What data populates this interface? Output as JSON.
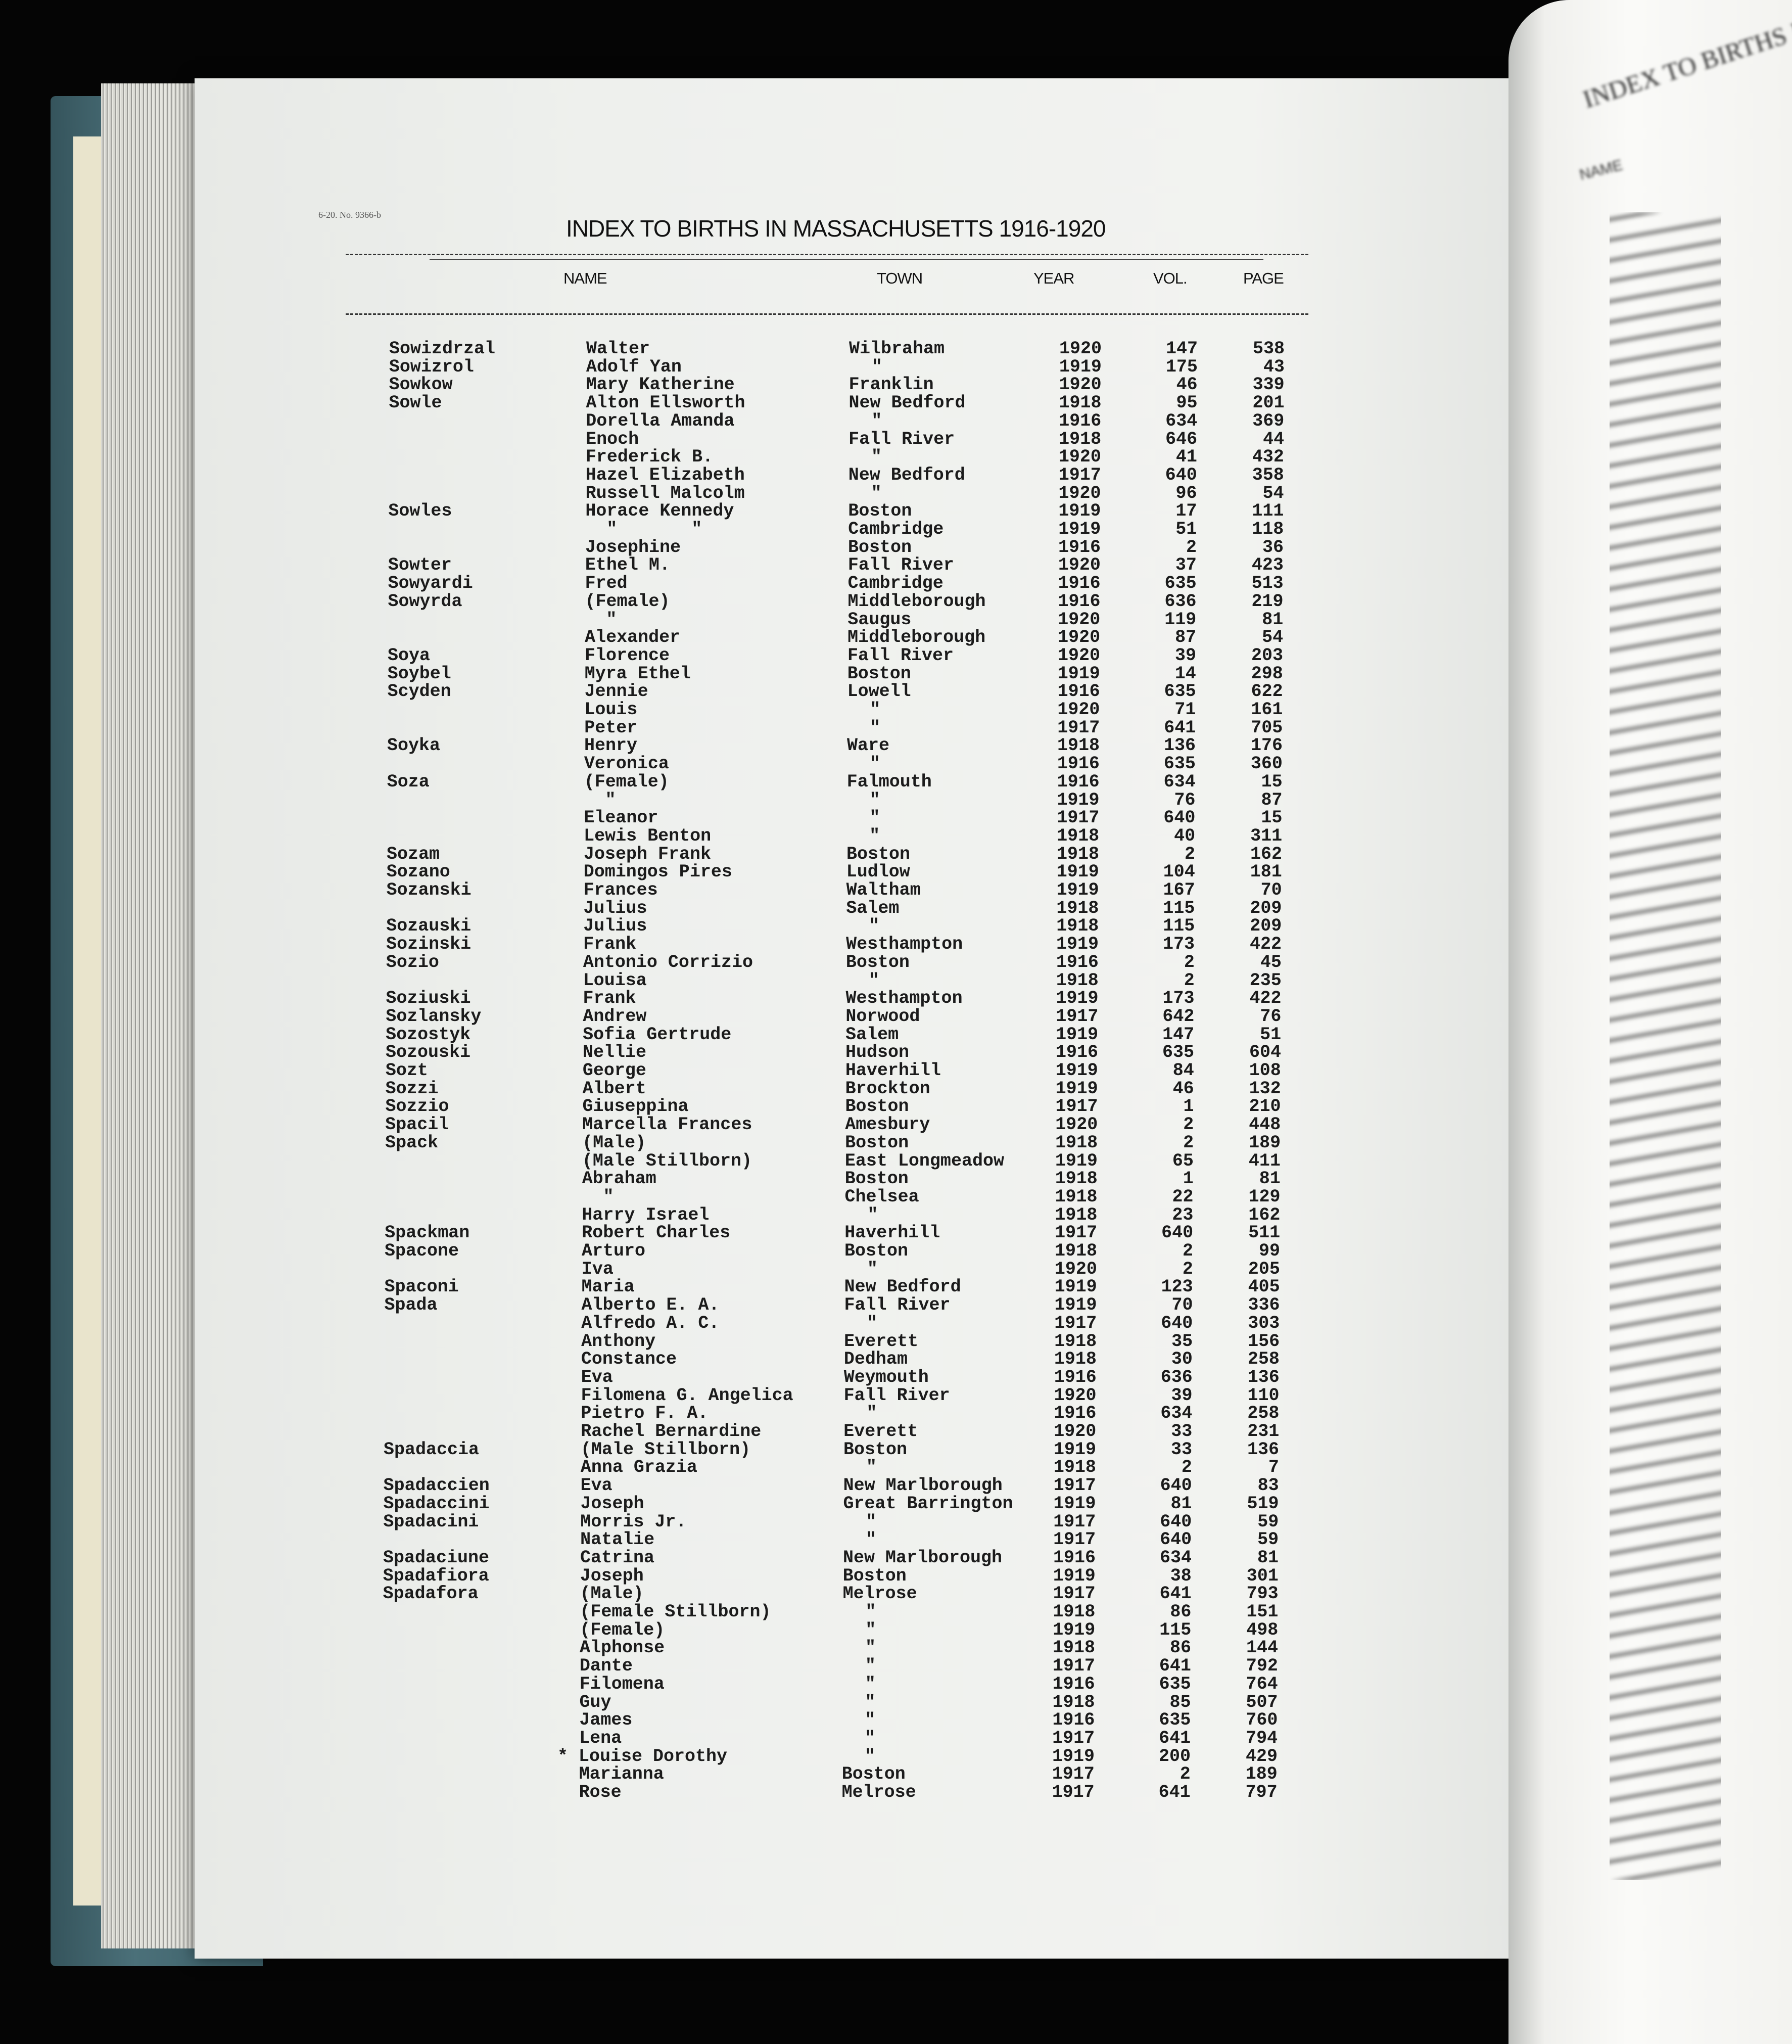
{
  "left_page": {
    "form_number": "6-20. No. 9366-b",
    "title": "INDEX TO BIRTHS IN MASSACHUSETTS 1916-1920",
    "columns": {
      "name": "NAME",
      "town": "TOWN",
      "year": "YEAR",
      "vol": "VOL.",
      "page": "PAGE"
    },
    "rows": [
      [
        "Sowizdrzal",
        "Walter",
        "Wilbraham",
        "1920",
        "147",
        "538"
      ],
      [
        "Sowizrol",
        "Adolf Yan",
        "\"",
        "1919",
        "175",
        "43"
      ],
      [
        "Sowkow",
        "Mary Katherine",
        "Franklin",
        "1920",
        "46",
        "339"
      ],
      [
        "Sowle",
        "Alton Ellsworth",
        "New Bedford",
        "1918",
        "95",
        "201"
      ],
      [
        "",
        "Dorella Amanda",
        "\"",
        "1916",
        "634",
        "369"
      ],
      [
        "",
        "Enoch",
        "Fall River",
        "1918",
        "646",
        "44"
      ],
      [
        "",
        "Frederick B.",
        "\"",
        "1920",
        "41",
        "432"
      ],
      [
        "",
        "Hazel Elizabeth",
        "New Bedford",
        "1917",
        "640",
        "358"
      ],
      [
        "",
        "Russell Malcolm",
        "\"",
        "1920",
        "96",
        "54"
      ],
      [
        "Sowles",
        "Horace Kennedy",
        "Boston",
        "1919",
        "17",
        "111"
      ],
      [
        "",
        "  \"       \"",
        "Cambridge",
        "1919",
        "51",
        "118"
      ],
      [
        "",
        "Josephine",
        "Boston",
        "1916",
        "2",
        "36"
      ],
      [
        "Sowter",
        "Ethel M.",
        "Fall River",
        "1920",
        "37",
        "423"
      ],
      [
        "Sowyardi",
        "Fred",
        "Cambridge",
        "1916",
        "635",
        "513"
      ],
      [
        "Sowyrda",
        "(Female)",
        "Middleborough",
        "1916",
        "636",
        "219"
      ],
      [
        "",
        "  \"",
        "Saugus",
        "1920",
        "119",
        "81"
      ],
      [
        "",
        "Alexander",
        "Middleborough",
        "1920",
        "87",
        "54"
      ],
      [
        "Soya",
        "Florence",
        "Fall River",
        "1920",
        "39",
        "203"
      ],
      [
        "Soybel",
        "Myra Ethel",
        "Boston",
        "1919",
        "14",
        "298"
      ],
      [
        "Scyden",
        "Jennie",
        "Lowell",
        "1916",
        "635",
        "622"
      ],
      [
        "",
        "Louis",
        "\"",
        "1920",
        "71",
        "161"
      ],
      [
        "",
        "Peter",
        "\"",
        "1917",
        "641",
        "705"
      ],
      [
        "Soyka",
        "Henry",
        "Ware",
        "1918",
        "136",
        "176"
      ],
      [
        "",
        "Veronica",
        "\"",
        "1916",
        "635",
        "360"
      ],
      [
        "Soza",
        "(Female)",
        "Falmouth",
        "1916",
        "634",
        "15"
      ],
      [
        "",
        "  \"",
        "\"",
        "1919",
        "76",
        "87"
      ],
      [
        "",
        "Eleanor",
        "\"",
        "1917",
        "640",
        "15"
      ],
      [
        "",
        "Lewis Benton",
        "\"",
        "1918",
        "40",
        "311"
      ],
      [
        "Sozam",
        "Joseph Frank",
        "Boston",
        "1918",
        "2",
        "162"
      ],
      [
        "Sozano",
        "Domingos Pires",
        "Ludlow",
        "1919",
        "104",
        "181"
      ],
      [
        "Sozanski",
        "Frances",
        "Waltham",
        "1919",
        "167",
        "70"
      ],
      [
        "",
        "Julius",
        "Salem",
        "1918",
        "115",
        "209"
      ],
      [
        "Sozauski",
        "Julius",
        "\"",
        "1918",
        "115",
        "209"
      ],
      [
        "Sozinski",
        "Frank",
        "Westhampton",
        "1919",
        "173",
        "422"
      ],
      [
        "Sozio",
        "Antonio Corrizio",
        "Boston",
        "1916",
        "2",
        "45"
      ],
      [
        "",
        "Louisa",
        "\"",
        "1918",
        "2",
        "235"
      ],
      [
        "Soziuski",
        "Frank",
        "Westhampton",
        "1919",
        "173",
        "422"
      ],
      [
        "Sozlansky",
        "Andrew",
        "Norwood",
        "1917",
        "642",
        "76"
      ],
      [
        "Sozostyk",
        "Sofia Gertrude",
        "Salem",
        "1919",
        "147",
        "51"
      ],
      [
        "Sozouski",
        "Nellie",
        "Hudson",
        "1916",
        "635",
        "604"
      ],
      [
        "Sozt",
        "George",
        "Haverhill",
        "1919",
        "84",
        "108"
      ],
      [
        "Sozzi",
        "Albert",
        "Brockton",
        "1919",
        "46",
        "132"
      ],
      [
        "Sozzio",
        "Giuseppina",
        "Boston",
        "1917",
        "1",
        "210"
      ],
      [
        "Spacil",
        "Marcella Frances",
        "Amesbury",
        "1920",
        "2",
        "448"
      ],
      [
        "Spack",
        "(Male)",
        "Boston",
        "1918",
        "2",
        "189"
      ],
      [
        "",
        "(Male Stillborn)",
        "East Longmeadow",
        "1919",
        "65",
        "411"
      ],
      [
        "",
        "Abraham",
        "Boston",
        "1918",
        "1",
        "81"
      ],
      [
        "",
        "  \"",
        "Chelsea",
        "1918",
        "22",
        "129"
      ],
      [
        "",
        "Harry Israel",
        "\"",
        "1918",
        "23",
        "162"
      ],
      [
        "Spackman",
        "Robert Charles",
        "Haverhill",
        "1917",
        "640",
        "511"
      ],
      [
        "Spacone",
        "Arturo",
        "Boston",
        "1918",
        "2",
        "99"
      ],
      [
        "",
        "Iva",
        "\"",
        "1920",
        "2",
        "205"
      ],
      [
        "Spaconi",
        "Maria",
        "New Bedford",
        "1919",
        "123",
        "405"
      ],
      [
        "Spada",
        "Alberto E. A.",
        "Fall River",
        "1919",
        "70",
        "336"
      ],
      [
        "",
        "Alfredo A. C.",
        "\"",
        "1917",
        "640",
        "303"
      ],
      [
        "",
        "Anthony",
        "Everett",
        "1918",
        "35",
        "156"
      ],
      [
        "",
        "Constance",
        "Dedham",
        "1918",
        "30",
        "258"
      ],
      [
        "",
        "Eva",
        "Weymouth",
        "1916",
        "636",
        "136"
      ],
      [
        "",
        "Filomena G. Angelica",
        "Fall River",
        "1920",
        "39",
        "110"
      ],
      [
        "",
        "Pietro F. A.",
        "\"",
        "1916",
        "634",
        "258"
      ],
      [
        "",
        "Rachel Bernardine",
        "Everett",
        "1920",
        "33",
        "231"
      ],
      [
        "Spadaccia",
        "(Male Stillborn)",
        "Boston",
        "1919",
        "33",
        "136"
      ],
      [
        "",
        "Anna Grazia",
        "\"",
        "1918",
        "2",
        "7"
      ],
      [
        "Spadaccien",
        "Eva",
        "New Marlborough",
        "1917",
        "640",
        "83"
      ],
      [
        "Spadaccini",
        "Joseph",
        "Great Barrington",
        "1919",
        "81",
        "519"
      ],
      [
        "Spadacini",
        "Morris Jr.",
        "\"",
        "1917",
        "640",
        "59"
      ],
      [
        "",
        "Natalie",
        "\"",
        "1917",
        "640",
        "59"
      ],
      [
        "Spadaciune",
        "Catrina",
        "New Marlborough",
        "1916",
        "634",
        "81"
      ],
      [
        "Spadafiora",
        "Joseph",
        "Boston",
        "1919",
        "38",
        "301"
      ],
      [
        "Spadafora",
        "(Male)",
        "Melrose",
        "1917",
        "641",
        "793"
      ],
      [
        "",
        "(Female Stillborn)",
        "\"",
        "1918",
        "86",
        "151"
      ],
      [
        "",
        "(Female)",
        "\"",
        "1919",
        "115",
        "498"
      ],
      [
        "",
        "Alphonse",
        "\"",
        "1918",
        "86",
        "144"
      ],
      [
        "",
        "Dante",
        "\"",
        "1917",
        "641",
        "792"
      ],
      [
        "",
        "Filomena",
        "\"",
        "1916",
        "635",
        "764"
      ],
      [
        "",
        "Guy",
        "\"",
        "1918",
        "85",
        "507"
      ],
      [
        "",
        "James",
        "\"",
        "1916",
        "635",
        "760"
      ],
      [
        "",
        "Lena",
        "\"",
        "1917",
        "641",
        "794"
      ],
      [
        "",
        "* Louise Dorothy",
        "\"",
        "1919",
        "200",
        "429"
      ],
      [
        "",
        "Marianna",
        "Boston",
        "1917",
        "2",
        "189"
      ],
      [
        "",
        "Rose",
        "Melrose",
        "1917",
        "641",
        "797"
      ]
    ]
  },
  "right_page": {
    "title": "INDEX TO BIRTHS IN MA",
    "name_header": "NAME"
  },
  "colors": {
    "background": "#050505",
    "cover": "#4b7079",
    "paper": "#eef0ed",
    "ink": "#1b1b1b"
  }
}
